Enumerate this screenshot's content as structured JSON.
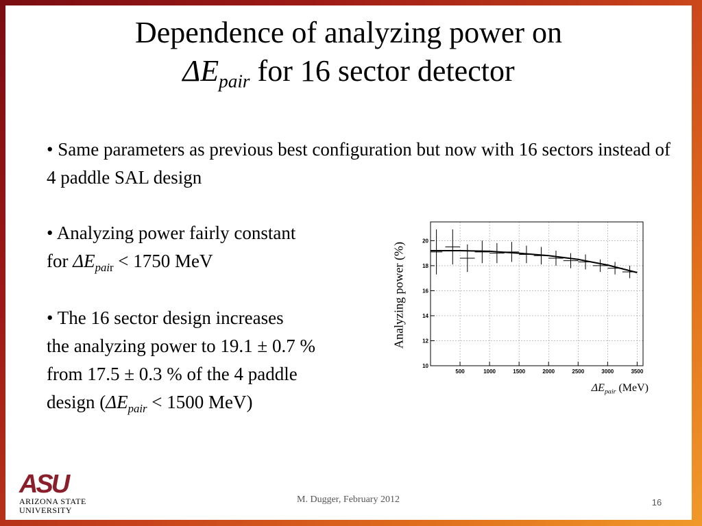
{
  "title": {
    "line1": "Dependence of analyzing power on",
    "symbol": "ΔE",
    "subscript": "pair",
    "line2_rest": " for 16 sector detector"
  },
  "bullets": [
    {
      "text": "• Same parameters as previous best configuration but now with 16 sectors instead of 4 paddle SAL design"
    },
    {
      "line1": "• Analyzing power fairly constant",
      "pre": "for ",
      "symbol": "ΔE",
      "subscript": "pai",
      "sub_tail": "r",
      "post": " < 1750 MeV"
    },
    {
      "line1": "• The 16 sector design increases",
      "line2": "the analyzing power to 19.1 ± 0.7 %",
      "line3": "from 17.5 ± 0.3 % of the 4 paddle",
      "pre": "design (",
      "symbol": "ΔE",
      "subscript": "pair",
      "post": " < 1500 MeV)"
    }
  ],
  "chart_data": {
    "type": "scatter",
    "ylabel": "Analyzing power (%)",
    "xlabel_symbol": "ΔE",
    "xlabel_sub": "pair",
    "xlabel_unit": " (MeV)",
    "xlim": [
      0,
      3600
    ],
    "ylim": [
      10,
      21.5
    ],
    "xticks": [
      500,
      1000,
      1500,
      2000,
      2500,
      3000,
      3500
    ],
    "yticks": [
      10,
      12,
      14,
      16,
      18,
      20
    ],
    "grid": true,
    "points": [
      {
        "x": 100,
        "xerr": 100,
        "y": 19.1,
        "yerr": 1.8
      },
      {
        "x": 375,
        "xerr": 125,
        "y": 19.5,
        "yerr": 1.4
      },
      {
        "x": 625,
        "xerr": 125,
        "y": 18.6,
        "yerr": 1.1
      },
      {
        "x": 875,
        "xerr": 125,
        "y": 19.1,
        "yerr": 0.9
      },
      {
        "x": 1125,
        "xerr": 125,
        "y": 19.0,
        "yerr": 0.8
      },
      {
        "x": 1375,
        "xerr": 125,
        "y": 19.1,
        "yerr": 0.8
      },
      {
        "x": 1625,
        "xerr": 125,
        "y": 18.9,
        "yerr": 0.7
      },
      {
        "x": 1875,
        "xerr": 125,
        "y": 18.8,
        "yerr": 0.7
      },
      {
        "x": 2125,
        "xerr": 125,
        "y": 18.6,
        "yerr": 0.6
      },
      {
        "x": 2375,
        "xerr": 125,
        "y": 18.4,
        "yerr": 0.6
      },
      {
        "x": 2625,
        "xerr": 125,
        "y": 18.3,
        "yerr": 0.6
      },
      {
        "x": 2875,
        "xerr": 125,
        "y": 18.0,
        "yerr": 0.5
      },
      {
        "x": 3125,
        "xerr": 125,
        "y": 17.8,
        "yerr": 0.5
      },
      {
        "x": 3375,
        "xerr": 125,
        "y": 17.5,
        "yerr": 0.5
      }
    ],
    "fit_curve": [
      {
        "x": 0,
        "y": 19.2
      },
      {
        "x": 500,
        "y": 19.2
      },
      {
        "x": 1000,
        "y": 19.15
      },
      {
        "x": 1500,
        "y": 19.0
      },
      {
        "x": 2000,
        "y": 18.8
      },
      {
        "x": 2500,
        "y": 18.5
      },
      {
        "x": 3000,
        "y": 18.05
      },
      {
        "x": 3500,
        "y": 17.45
      }
    ]
  },
  "footer": "M. Dugger, February 2012",
  "page_number": "16",
  "logo": {
    "mark": "ASU",
    "line1": "ARIZONA STATE",
    "line2": "UNIVERSITY"
  }
}
